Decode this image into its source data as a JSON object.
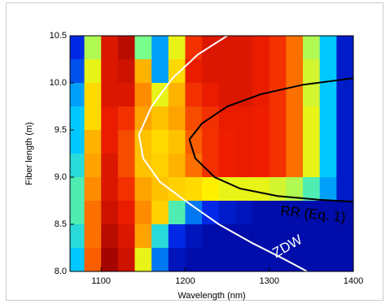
{
  "chart_data": {
    "type": "heatmap",
    "xlabel": "Wavelength (nm)",
    "ylabel": "Fiber length (m)",
    "xlim": [
      1063,
      1400
    ],
    "ylim": [
      8,
      10.5
    ],
    "xticks": [
      1100,
      1200,
      1300,
      1400
    ],
    "yticks": [
      {
        "value": 8,
        "label": "8.0"
      },
      8.5,
      {
        "value": 9,
        "label": "9.0"
      },
      9.5,
      {
        "value": 10,
        "label": "10.0"
      },
      10.5
    ],
    "x": [
      1070,
      1090,
      1110,
      1130,
      1150,
      1170,
      1190,
      1210,
      1230,
      1250,
      1270,
      1290,
      1310,
      1330,
      1350,
      1370,
      1390
    ],
    "y": [
      10.375,
      10.125,
      9.875,
      9.625,
      9.375,
      9.125,
      8.875,
      8.625,
      8.375,
      8.125
    ],
    "z": [
      [
        0.15,
        0.55,
        0.9,
        0.95,
        0.5,
        0.3,
        0.6,
        0.85,
        0.9,
        0.9,
        0.9,
        0.88,
        0.85,
        0.78,
        0.55,
        0.35,
        0.1
      ],
      [
        0.2,
        0.6,
        0.9,
        0.92,
        0.7,
        0.3,
        0.65,
        0.88,
        0.9,
        0.9,
        0.9,
        0.88,
        0.85,
        0.78,
        0.58,
        0.35,
        0.1
      ],
      [
        0.3,
        0.65,
        0.9,
        0.9,
        0.75,
        0.6,
        0.7,
        0.85,
        0.88,
        0.9,
        0.9,
        0.88,
        0.85,
        0.78,
        0.58,
        0.35,
        0.1
      ],
      [
        0.35,
        0.65,
        0.88,
        0.85,
        0.72,
        0.68,
        0.72,
        0.82,
        0.85,
        0.88,
        0.88,
        0.87,
        0.85,
        0.78,
        0.6,
        0.35,
        0.1
      ],
      [
        0.35,
        0.7,
        0.88,
        0.82,
        0.68,
        0.65,
        0.68,
        0.8,
        0.85,
        0.87,
        0.88,
        0.87,
        0.85,
        0.78,
        0.6,
        0.35,
        0.1
      ],
      [
        0.4,
        0.72,
        0.9,
        0.82,
        0.68,
        0.66,
        0.7,
        0.78,
        0.85,
        0.87,
        0.88,
        0.87,
        0.85,
        0.78,
        0.6,
        0.35,
        0.1
      ],
      [
        0.45,
        0.75,
        0.9,
        0.85,
        0.72,
        0.68,
        0.66,
        0.65,
        0.62,
        0.6,
        0.6,
        0.6,
        0.58,
        0.55,
        0.45,
        0.3,
        0.1
      ],
      [
        0.45,
        0.78,
        0.92,
        0.88,
        0.75,
        0.66,
        0.45,
        0.25,
        0.15,
        0.1,
        0.08,
        0.05,
        0.05,
        0.05,
        0.05,
        0.05,
        0.05
      ],
      [
        0.4,
        0.78,
        0.95,
        0.9,
        0.72,
        0.4,
        0.15,
        0.08,
        0.05,
        0.05,
        0.05,
        0.05,
        0.05,
        0.05,
        0.05,
        0.05,
        0.05
      ],
      [
        0.35,
        0.8,
        0.98,
        0.92,
        0.6,
        0.25,
        0.08,
        0.05,
        0.05,
        0.05,
        0.05,
        0.05,
        0.05,
        0.05,
        0.05,
        0.05,
        0.05
      ]
    ],
    "curves": [
      {
        "name": "ZDW",
        "color": "#ffffff",
        "x": [
          1250,
          1215,
          1185,
          1160,
          1145,
          1150,
          1170,
          1200,
          1240,
          1280,
          1320,
          1345
        ],
        "y": [
          10.5,
          10.3,
          10.05,
          9.75,
          9.45,
          9.2,
          8.95,
          8.75,
          8.5,
          8.3,
          8.12,
          8.0
        ]
      },
      {
        "name": "RR (Eq. 1)",
        "color": "#000000",
        "x": [
          1400,
          1340,
          1290,
          1250,
          1220,
          1205,
          1212,
          1235,
          1265,
          1310,
          1360,
          1400
        ],
        "y": [
          10.05,
          9.98,
          9.88,
          9.75,
          9.57,
          9.4,
          9.2,
          9.0,
          8.88,
          8.8,
          8.76,
          8.74
        ]
      }
    ]
  }
}
